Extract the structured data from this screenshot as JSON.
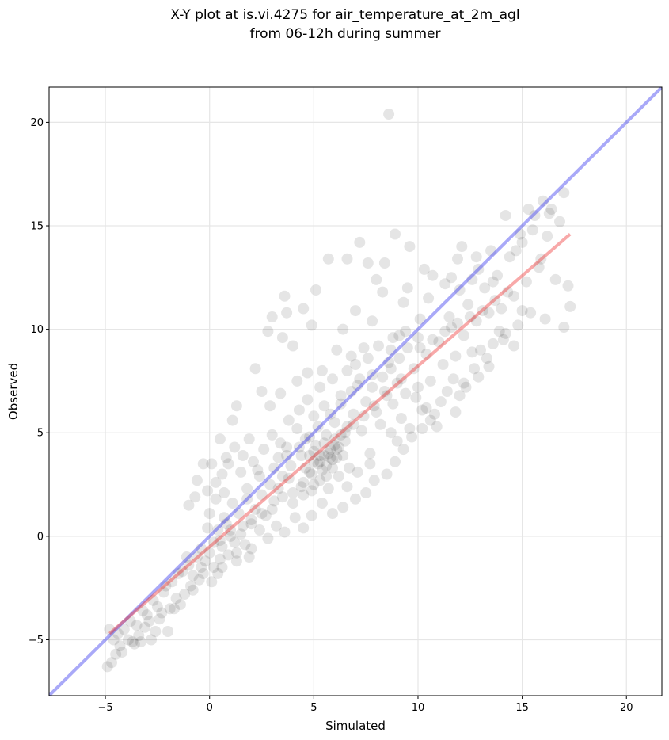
{
  "chart_data": {
    "type": "scatter",
    "title_line1": "X-Y plot at is.vi.4275 for air_temperature_at_2m_agl",
    "title_line2": "from 06-12h during summer",
    "xlabel": "Simulated",
    "ylabel": "Observed",
    "xlim": [
      -7.7,
      21.7
    ],
    "ylim": [
      -7.7,
      21.7
    ],
    "xticks": [
      -5,
      0,
      5,
      10,
      15,
      20
    ],
    "yticks": [
      -5,
      0,
      5,
      10,
      15,
      20
    ],
    "xtick_labels": [
      "−5",
      "0",
      "5",
      "10",
      "15",
      "20"
    ],
    "ytick_labels": [
      "−5",
      "0",
      "5",
      "10",
      "15",
      "20"
    ],
    "grid": true,
    "point_color": "#000000",
    "lines": [
      {
        "role": "one-to-one",
        "color": "#3333ee",
        "x": [
          -7.7,
          21.7
        ],
        "y": [
          -7.7,
          21.7
        ]
      },
      {
        "role": "regression",
        "color": "#ee3333",
        "x": [
          -4.8,
          17.3
        ],
        "y": [
          -4.7,
          14.6
        ]
      }
    ],
    "points": [
      [
        -4.9,
        -6.3
      ],
      [
        -4.7,
        -6.1
      ],
      [
        -4.5,
        -5.7
      ],
      [
        -4.3,
        -5.3
      ],
      [
        -3.9,
        -5.0
      ],
      [
        -3.6,
        -5.2
      ],
      [
        -3.4,
        -4.8
      ],
      [
        -3.1,
        -4.4
      ],
      [
        -2.9,
        -4.1
      ],
      [
        -2.6,
        -4.6
      ],
      [
        -2.3,
        -3.7
      ],
      [
        -2.0,
        -4.6
      ],
      [
        -1.9,
        -3.5
      ],
      [
        -1.6,
        -3.0
      ],
      [
        -1.4,
        -3.3
      ],
      [
        -1.2,
        -2.8
      ],
      [
        -4.4,
        -4.7
      ],
      [
        -3.8,
        -4.1
      ],
      [
        -3.2,
        -3.6
      ],
      [
        -2.7,
        -3.1
      ],
      [
        -2.2,
        -2.7
      ],
      [
        -1.8,
        -2.2
      ],
      [
        -1.3,
        -1.7
      ],
      [
        -1.0,
        -1.4
      ],
      [
        -0.8,
        -1.9
      ],
      [
        -0.6,
        -1.0
      ],
      [
        -0.4,
        -0.6
      ],
      [
        -0.2,
        -1.2
      ],
      [
        0.0,
        -0.8
      ],
      [
        0.2,
        -0.3
      ],
      [
        -1.0,
        1.5
      ],
      [
        -0.7,
        1.9
      ],
      [
        -0.6,
        2.7
      ],
      [
        -0.3,
        3.5
      ],
      [
        -0.1,
        2.2
      ],
      [
        0.3,
        2.6
      ],
      [
        0.5,
        4.7
      ],
      [
        0.8,
        3.8
      ],
      [
        1.1,
        5.6
      ],
      [
        1.3,
        6.3
      ],
      [
        0.4,
        0.3
      ],
      [
        0.6,
        -0.5
      ],
      [
        0.8,
        0.6
      ],
      [
        1.0,
        0.0
      ],
      [
        1.2,
        -0.3
      ],
      [
        1.4,
        1.1
      ],
      [
        1.6,
        0.5
      ],
      [
        1.8,
        1.8
      ],
      [
        2.0,
        0.8
      ],
      [
        2.2,
        1.3
      ],
      [
        2.3,
        3.2
      ],
      [
        2.5,
        2.0
      ],
      [
        2.7,
        1.0
      ],
      [
        2.9,
        2.5
      ],
      [
        3.1,
        1.7
      ],
      [
        3.3,
        3.8
      ],
      [
        3.5,
        2.9
      ],
      [
        3.7,
        4.3
      ],
      [
        3.9,
        3.4
      ],
      [
        4.0,
        2.1
      ],
      [
        4.2,
        5.2
      ],
      [
        4.4,
        3.9
      ],
      [
        4.6,
        4.7
      ],
      [
        4.8,
        3.1
      ],
      [
        5.0,
        5.8
      ],
      [
        5.1,
        4.4
      ],
      [
        5.3,
        3.6
      ],
      [
        5.5,
        6.3
      ],
      [
        5.6,
        4.9
      ],
      [
        5.8,
        3.8
      ],
      [
        6.0,
        5.5
      ],
      [
        6.1,
        4.2
      ],
      [
        6.3,
        6.8
      ],
      [
        6.5,
        4.6
      ],
      [
        6.7,
        3.3
      ],
      [
        6.9,
        5.9
      ],
      [
        7.1,
        7.3
      ],
      [
        7.3,
        5.1
      ],
      [
        7.5,
        6.5
      ],
      [
        7.7,
        4.0
      ],
      [
        5.2,
        3.5
      ],
      [
        5.4,
        3.2
      ],
      [
        5.7,
        4.0
      ],
      [
        5.9,
        3.7
      ],
      [
        6.2,
        4.3
      ],
      [
        4.9,
        3.0
      ],
      [
        4.5,
        2.6
      ],
      [
        5.6,
        2.9
      ],
      [
        6.4,
        3.9
      ],
      [
        6.6,
        5.3
      ],
      [
        7.8,
        7.8
      ],
      [
        8.0,
        6.0
      ],
      [
        8.2,
        5.4
      ],
      [
        8.4,
        7.0
      ],
      [
        8.6,
        8.4
      ],
      [
        8.8,
        6.4
      ],
      [
        9.0,
        4.6
      ],
      [
        9.2,
        7.6
      ],
      [
        9.4,
        6.9
      ],
      [
        9.6,
        5.2
      ],
      [
        9.8,
        8.1
      ],
      [
        10.0,
        7.2
      ],
      [
        10.2,
        6.1
      ],
      [
        10.4,
        8.8
      ],
      [
        10.6,
        7.5
      ],
      [
        10.8,
        5.9
      ],
      [
        11.0,
        9.4
      ],
      [
        11.2,
        8.3
      ],
      [
        11.4,
        7.0
      ],
      [
        11.6,
        10.1
      ],
      [
        11.8,
        8.7
      ],
      [
        12.0,
        6.8
      ],
      [
        12.2,
        9.7
      ],
      [
        12.4,
        11.2
      ],
      [
        12.6,
        8.9
      ],
      [
        12.8,
        10.4
      ],
      [
        13.0,
        9.0
      ],
      [
        13.2,
        12.0
      ],
      [
        13.4,
        10.8
      ],
      [
        13.6,
        9.3
      ],
      [
        13.8,
        12.6
      ],
      [
        14.0,
        11.0
      ],
      [
        14.2,
        9.8
      ],
      [
        14.4,
        13.5
      ],
      [
        14.6,
        11.6
      ],
      [
        14.8,
        10.2
      ],
      [
        15.0,
        14.2
      ],
      [
        15.2,
        12.3
      ],
      [
        15.4,
        10.8
      ],
      [
        15.6,
        15.5
      ],
      [
        15.8,
        13.0
      ],
      [
        16.0,
        16.2
      ],
      [
        16.2,
        14.5
      ],
      [
        16.4,
        15.8
      ],
      [
        16.6,
        12.4
      ],
      [
        16.8,
        15.2
      ],
      [
        17.0,
        16.6
      ],
      [
        17.2,
        12.1
      ],
      [
        17.3,
        11.1
      ],
      [
        17.0,
        10.1
      ],
      [
        14.2,
        15.5
      ],
      [
        14.9,
        14.6
      ],
      [
        15.3,
        15.8
      ],
      [
        12.6,
        12.4
      ],
      [
        12.1,
        14.0
      ],
      [
        11.9,
        13.4
      ],
      [
        13.5,
        13.8
      ],
      [
        10.7,
        12.6
      ],
      [
        10.3,
        12.9
      ],
      [
        9.5,
        12.0
      ],
      [
        8.4,
        13.2
      ],
      [
        7.6,
        13.2
      ],
      [
        7.2,
        14.2
      ],
      [
        6.6,
        13.4
      ],
      [
        5.7,
        13.4
      ],
      [
        5.1,
        11.9
      ],
      [
        4.5,
        11.0
      ],
      [
        3.7,
        10.8
      ],
      [
        3.6,
        11.6
      ],
      [
        3.0,
        10.6
      ],
      [
        2.8,
        9.9
      ],
      [
        3.5,
        9.6
      ],
      [
        4.0,
        9.2
      ],
      [
        4.9,
        10.2
      ],
      [
        6.4,
        10.0
      ],
      [
        7.0,
        10.9
      ],
      [
        7.8,
        10.4
      ],
      [
        8.3,
        11.8
      ],
      [
        9.3,
        11.3
      ],
      [
        8.0,
        12.4
      ],
      [
        8.6,
        20.4
      ],
      [
        8.9,
        14.6
      ],
      [
        9.6,
        14.0
      ],
      [
        10.5,
        11.5
      ],
      [
        11.3,
        12.2
      ],
      [
        12.8,
        13.5
      ],
      [
        11.5,
        10.6
      ],
      [
        10.1,
        10.5
      ],
      [
        9.1,
        9.7
      ],
      [
        8.7,
        9.0
      ],
      [
        7.4,
        9.1
      ],
      [
        6.8,
        8.7
      ],
      [
        6.1,
        9.0
      ],
      [
        5.4,
        8.0
      ],
      [
        4.7,
        7.9
      ],
      [
        4.2,
        7.5
      ],
      [
        3.4,
        6.9
      ],
      [
        2.9,
        6.3
      ],
      [
        2.5,
        7.0
      ],
      [
        2.2,
        8.1
      ],
      [
        1.9,
        4.7
      ],
      [
        1.6,
        3.9
      ],
      [
        1.2,
        4.3
      ],
      [
        0.9,
        3.5
      ],
      [
        0.6,
        3.0
      ],
      [
        0.3,
        1.8
      ],
      [
        0.0,
        1.1
      ],
      [
        0.1,
        3.5
      ],
      [
        0.7,
        2.1
      ],
      [
        1.5,
        3.1
      ],
      [
        2.1,
        3.6
      ],
      [
        2.6,
        4.2
      ],
      [
        3.0,
        4.9
      ],
      [
        3.4,
        4.5
      ],
      [
        3.8,
        5.6
      ],
      [
        4.3,
        6.1
      ],
      [
        4.7,
        6.6
      ],
      [
        5.3,
        7.2
      ],
      [
        5.9,
        7.6
      ],
      [
        6.6,
        8.0
      ],
      [
        7.0,
        8.3
      ],
      [
        7.6,
        8.6
      ],
      [
        8.1,
        9.2
      ],
      [
        8.8,
        9.6
      ],
      [
        9.4,
        9.9
      ],
      [
        10.1,
        9.1
      ],
      [
        10.7,
        9.5
      ],
      [
        11.3,
        9.9
      ],
      [
        11.9,
        10.3
      ],
      [
        12.5,
        10.6
      ],
      [
        13.1,
        10.9
      ],
      [
        13.7,
        11.4
      ],
      [
        14.3,
        11.8
      ],
      [
        13.9,
        9.9
      ],
      [
        14.6,
        9.2
      ],
      [
        13.3,
        8.6
      ],
      [
        12.7,
        8.1
      ],
      [
        12.3,
        7.2
      ],
      [
        11.7,
        7.6
      ],
      [
        11.1,
        6.5
      ],
      [
        10.6,
        5.6
      ],
      [
        10.2,
        5.2
      ],
      [
        9.7,
        4.8
      ],
      [
        9.3,
        4.2
      ],
      [
        8.9,
        3.6
      ],
      [
        8.5,
        3.0
      ],
      [
        7.9,
        2.7
      ],
      [
        7.5,
        2.1
      ],
      [
        7.0,
        1.8
      ],
      [
        6.4,
        1.4
      ],
      [
        5.9,
        1.1
      ],
      [
        5.4,
        1.6
      ],
      [
        4.9,
        1.0
      ],
      [
        4.5,
        0.4
      ],
      [
        4.1,
        0.9
      ],
      [
        3.6,
        0.2
      ],
      [
        3.2,
        0.5
      ],
      [
        2.8,
        -0.1
      ],
      [
        2.4,
        0.3
      ],
      [
        2.0,
        -0.6
      ],
      [
        1.7,
        -0.4
      ],
      [
        1.3,
        -0.8
      ],
      [
        0.9,
        -0.9
      ],
      [
        0.5,
        -1.1
      ],
      [
        0.2,
        -1.5
      ],
      [
        -0.3,
        -1.8
      ],
      [
        -0.5,
        -2.1
      ],
      [
        -0.9,
        -2.4
      ],
      [
        -1.1,
        -1.0
      ],
      [
        -1.5,
        -1.8
      ],
      [
        -2.1,
        -2.4
      ],
      [
        -2.5,
        -3.4
      ],
      [
        -3.0,
        -3.8
      ],
      [
        -3.5,
        -4.3
      ],
      [
        -4.1,
        -4.5
      ],
      [
        -4.6,
        -5.0
      ],
      [
        -4.8,
        -4.5
      ],
      [
        -4.2,
        -5.6
      ],
      [
        -3.7,
        -5.1
      ],
      [
        -2.8,
        -5.0
      ],
      [
        -0.1,
        0.4
      ],
      [
        0.7,
        0.9
      ],
      [
        1.1,
        1.6
      ],
      [
        1.8,
        2.3
      ],
      [
        2.4,
        2.9
      ],
      [
        3.1,
        3.3
      ],
      [
        3.7,
        3.9
      ],
      [
        4.3,
        4.3
      ],
      [
        4.8,
        4.8
      ],
      [
        5.2,
        5.3
      ],
      [
        5.8,
        5.9
      ],
      [
        6.3,
        6.4
      ],
      [
        6.8,
        7.0
      ],
      [
        7.2,
        7.6
      ],
      [
        7.8,
        7.2
      ],
      [
        8.3,
        7.7
      ],
      [
        8.7,
        8.1
      ],
      [
        9.1,
        8.6
      ],
      [
        9.5,
        9.1
      ],
      [
        10.0,
        9.6
      ],
      [
        4.6,
        3.3
      ],
      [
        5.0,
        4.1
      ],
      [
        5.5,
        3.9
      ],
      [
        6.0,
        4.7
      ],
      [
        6.5,
        5.0
      ],
      [
        6.9,
        5.4
      ],
      [
        7.4,
        5.8
      ],
      [
        7.9,
        6.3
      ],
      [
        8.5,
        6.8
      ],
      [
        9.0,
        7.4
      ],
      [
        3.3,
        2.3
      ],
      [
        3.8,
        2.8
      ],
      [
        4.4,
        2.4
      ],
      [
        4.9,
        2.2
      ],
      [
        5.3,
        2.7
      ],
      [
        5.7,
        2.3
      ],
      [
        6.2,
        2.9
      ],
      [
        6.6,
        2.4
      ],
      [
        7.1,
        3.1
      ],
      [
        7.7,
        3.5
      ],
      [
        0.5,
        -0.2
      ],
      [
        1.0,
        0.3
      ],
      [
        1.5,
        0.1
      ],
      [
        2.0,
        0.6
      ],
      [
        2.5,
        1.1
      ],
      [
        3.0,
        1.3
      ],
      [
        3.5,
        1.9
      ],
      [
        4.0,
        1.6
      ],
      [
        4.5,
        2.0
      ],
      [
        5.0,
        2.5
      ],
      [
        5.0,
        3.6
      ],
      [
        5.3,
        3.9
      ],
      [
        5.6,
        3.4
      ],
      [
        5.8,
        4.2
      ],
      [
        6.1,
        3.8
      ],
      [
        6.0,
        4.4
      ],
      [
        5.5,
        4.5
      ],
      [
        4.8,
        3.9
      ],
      [
        5.9,
        3.3
      ],
      [
        6.3,
        4.9
      ],
      [
        11.6,
        12.5
      ],
      [
        12.0,
        11.9
      ],
      [
        12.9,
        12.9
      ],
      [
        13.6,
        12.3
      ],
      [
        14.7,
        13.8
      ],
      [
        15.5,
        14.8
      ],
      [
        16.3,
        15.6
      ],
      [
        15.9,
        13.4
      ],
      [
        16.1,
        10.5
      ],
      [
        15.0,
        10.9
      ],
      [
        14.1,
        9.5
      ],
      [
        13.4,
        8.2
      ],
      [
        12.9,
        7.7
      ],
      [
        12.2,
        7.4
      ],
      [
        11.8,
        6.0
      ],
      [
        10.9,
        5.3
      ],
      [
        10.4,
        6.2
      ],
      [
        9.9,
        6.7
      ],
      [
        9.2,
        5.7
      ],
      [
        8.7,
        5.0
      ],
      [
        -1.7,
        -3.5
      ],
      [
        -2.4,
        -4.0
      ],
      [
        -3.3,
        -5.1
      ],
      [
        -0.8,
        -2.6
      ],
      [
        -0.4,
        -1.5
      ],
      [
        0.1,
        -2.2
      ],
      [
        0.4,
        -1.8
      ],
      [
        0.6,
        -1.5
      ],
      [
        1.3,
        -1.2
      ],
      [
        1.9,
        -1.0
      ]
    ]
  }
}
